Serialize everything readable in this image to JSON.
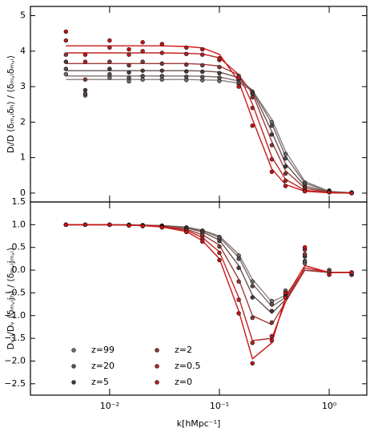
{
  "chart_data": [
    {
      "type": "scatter",
      "y_label": "Dᵢ/D ⟨δₘ,ᵢδₕ⟩ / ⟨δₘ,ᵢδₘ,ᵢ⟩",
      "log_x": true,
      "xlim": [
        0.0019,
        2.2
      ],
      "xticks": [
        0.01,
        0.1,
        1
      ],
      "ylim": [
        -0.25,
        5.26
      ],
      "yticks": [
        0,
        1,
        2,
        3,
        4,
        5
      ],
      "x": [
        0.004,
        0.006,
        0.01,
        0.015,
        0.02,
        0.03,
        0.05,
        0.07,
        0.1,
        0.15,
        0.2,
        0.3,
        0.4,
        0.6,
        1.0,
        1.6
      ],
      "series": [
        {
          "color": "#6e6e6e",
          "line_color": "#8a7f7f",
          "values": [
            3.35,
            2.75,
            3.25,
            3.15,
            3.2,
            3.2,
            3.19,
            3.18,
            3.16,
            3.08,
            2.85,
            2.0,
            1.1,
            0.3,
            0.07,
            0.02
          ],
          "fit": [
            3.2,
            3.2,
            3.2,
            3.2,
            3.2,
            3.2,
            3.2,
            3.19,
            3.18,
            3.1,
            2.89,
            2.08,
            1.18,
            0.33,
            0.05,
            0.01
          ]
        },
        {
          "color": "#5c4f4f",
          "line_color": "#7d6c6c",
          "values": [
            3.5,
            2.8,
            3.35,
            3.25,
            3.3,
            3.3,
            3.28,
            3.27,
            3.25,
            3.12,
            2.85,
            1.9,
            0.98,
            0.25,
            0.06,
            0.01
          ],
          "fit": [
            3.3,
            3.3,
            3.3,
            3.3,
            3.3,
            3.3,
            3.3,
            3.29,
            3.27,
            3.16,
            2.91,
            1.96,
            1.04,
            0.28,
            0.04,
            0.01
          ]
        },
        {
          "color": "#4a3838",
          "line_color": "#6a5555",
          "values": [
            3.7,
            2.9,
            3.5,
            3.4,
            3.45,
            3.45,
            3.43,
            3.42,
            3.38,
            3.2,
            2.8,
            1.65,
            0.75,
            0.18,
            0.05,
            0.0
          ],
          "fit": [
            3.45,
            3.45,
            3.45,
            3.45,
            3.45,
            3.45,
            3.45,
            3.44,
            3.41,
            3.25,
            2.88,
            1.73,
            0.83,
            0.2,
            0.03,
            0.0
          ]
        },
        {
          "color": "#8b3434",
          "line_color": "#a03a3a",
          "values": [
            3.9,
            3.2,
            3.7,
            3.6,
            3.7,
            3.65,
            3.62,
            3.6,
            3.55,
            3.3,
            2.7,
            1.35,
            0.55,
            0.12,
            0.04,
            0.01
          ],
          "fit": [
            3.65,
            3.65,
            3.65,
            3.65,
            3.65,
            3.65,
            3.65,
            3.63,
            3.58,
            3.33,
            2.81,
            1.45,
            0.63,
            0.14,
            0.02,
            0.0
          ]
        },
        {
          "color": "#b52222",
          "line_color": "#c02525",
          "values": [
            4.3,
            3.7,
            4.1,
            3.9,
            4.0,
            3.95,
            3.92,
            3.9,
            3.75,
            3.25,
            2.4,
            0.95,
            0.35,
            0.07,
            0.03,
            0.0
          ],
          "fit": [
            3.95,
            3.95,
            3.95,
            3.95,
            3.95,
            3.95,
            3.94,
            3.92,
            3.81,
            3.34,
            2.51,
            1.02,
            0.39,
            0.08,
            0.01,
            0.0
          ]
        },
        {
          "color": "#cc1111",
          "line_color": "#d01515",
          "values": [
            4.55,
            3.9,
            4.3,
            4.05,
            4.25,
            4.2,
            4.1,
            4.05,
            3.8,
            3.0,
            1.9,
            0.6,
            0.2,
            0.05,
            0.02,
            0.0
          ],
          "fit": [
            4.15,
            4.15,
            4.15,
            4.15,
            4.15,
            4.15,
            4.13,
            4.09,
            3.91,
            3.15,
            2.08,
            0.68,
            0.24,
            0.05,
            0.01,
            0.0
          ]
        }
      ]
    },
    {
      "type": "scatter",
      "y_label": "Dᵥ,ᵢ/Dᵥ ⟨δₘ,ᵢjₕ⟩ / ⟨δₘ,ᵢjₘ,ᵢ⟩",
      "x_label": "k[hMpc⁻¹]",
      "log_x": true,
      "xlim": [
        0.0019,
        2.2
      ],
      "xticks": [
        {
          "value": 0.01,
          "label": "10⁻²"
        },
        {
          "value": 0.1,
          "label": "10⁻¹"
        },
        {
          "value": 1,
          "label": "10⁰"
        }
      ],
      "ylim": [
        -2.75,
        1.5
      ],
      "yticks": [
        {
          "value": -2.5,
          "label": "−2.5"
        },
        {
          "value": -2,
          "label": "−2.0"
        },
        {
          "value": -1.5,
          "label": "−1.5"
        },
        {
          "value": -1,
          "label": "−1.0"
        },
        {
          "value": -0.5,
          "label": "−0.5"
        },
        {
          "value": 0,
          "label": "0.0"
        },
        {
          "value": 0.5,
          "label": "0.5"
        },
        {
          "value": 1,
          "label": "1.0"
        },
        {
          "value": 1.5,
          "label": "1.5"
        }
      ],
      "legend": "lower left",
      "x": [
        0.004,
        0.006,
        0.01,
        0.015,
        0.02,
        0.03,
        0.05,
        0.07,
        0.1,
        0.15,
        0.2,
        0.3,
        0.4,
        0.6,
        1.0,
        1.6
      ],
      "series": [
        {
          "name": "z=99",
          "color": "#6e6e6e",
          "line_color": "#8a7f7f",
          "values": [
            1,
            1,
            1,
            1,
            0.99,
            0.98,
            0.94,
            0.87,
            0.73,
            0.32,
            -0.25,
            -0.68,
            -0.45,
            0.15,
            0.0,
            -0.1
          ],
          "fit": [
            1,
            1,
            1,
            1,
            0.99,
            0.98,
            0.95,
            0.88,
            0.75,
            0.35,
            -0.2,
            -0.7,
            -0.55,
            0.0,
            -0.05,
            -0.05
          ]
        },
        {
          "name": "z=20",
          "color": "#5c4f4f",
          "line_color": "#7d6c6c",
          "values": [
            1,
            1,
            1,
            0.99,
            0.99,
            0.97,
            0.93,
            0.86,
            0.7,
            0.25,
            -0.35,
            -0.75,
            -0.5,
            0.2,
            0.0,
            -0.1
          ],
          "fit": [
            1,
            1,
            1,
            1,
            0.99,
            0.98,
            0.94,
            0.87,
            0.72,
            0.28,
            -0.3,
            -0.8,
            -0.6,
            0.0,
            -0.05,
            -0.05
          ]
        },
        {
          "name": "z=5",
          "color": "#4a3838",
          "line_color": "#6a5555",
          "values": [
            1,
            1,
            1,
            0.99,
            0.98,
            0.97,
            0.92,
            0.83,
            0.64,
            0.05,
            -0.6,
            -0.9,
            -0.55,
            0.3,
            -0.05,
            -0.1
          ],
          "fit": [
            1,
            1,
            1,
            1,
            0.99,
            0.98,
            0.93,
            0.84,
            0.66,
            0.1,
            -0.55,
            -0.95,
            -0.65,
            0.0,
            -0.05,
            -0.05
          ]
        },
        {
          "name": "z=2",
          "color": "#8b3434",
          "line_color": "#a03a3a",
          "values": [
            1,
            1,
            1,
            0.99,
            0.98,
            0.96,
            0.89,
            0.77,
            0.52,
            -0.25,
            -1.05,
            -1.15,
            -0.6,
            0.35,
            -0.05,
            -0.05
          ],
          "fit": [
            1,
            1,
            1,
            0.99,
            0.99,
            0.97,
            0.9,
            0.78,
            0.55,
            -0.2,
            -1.0,
            -1.2,
            -0.7,
            0.0,
            -0.05,
            -0.05
          ]
        },
        {
          "name": "z=0.5",
          "color": "#b52222",
          "line_color": "#c02525",
          "values": [
            1,
            1,
            1,
            0.98,
            0.97,
            0.95,
            0.87,
            0.7,
            0.38,
            -0.65,
            -1.6,
            -1.45,
            -0.6,
            0.45,
            -0.1,
            -0.05
          ],
          "fit": [
            1,
            1,
            1,
            0.99,
            0.98,
            0.96,
            0.88,
            0.72,
            0.4,
            -0.6,
            -1.55,
            -1.5,
            -0.7,
            0.05,
            -0.05,
            -0.05
          ]
        },
        {
          "name": "z=0",
          "color": "#cc1111",
          "line_color": "#d01515",
          "values": [
            1,
            1,
            1,
            0.98,
            0.97,
            0.94,
            0.84,
            0.63,
            0.22,
            -0.95,
            -2.05,
            -1.55,
            -0.5,
            0.5,
            -0.1,
            -0.05
          ],
          "fit": [
            1,
            1,
            1,
            0.99,
            0.98,
            0.95,
            0.85,
            0.65,
            0.25,
            -0.9,
            -1.95,
            -1.6,
            -0.6,
            0.1,
            -0.05,
            -0.05
          ]
        }
      ]
    }
  ]
}
